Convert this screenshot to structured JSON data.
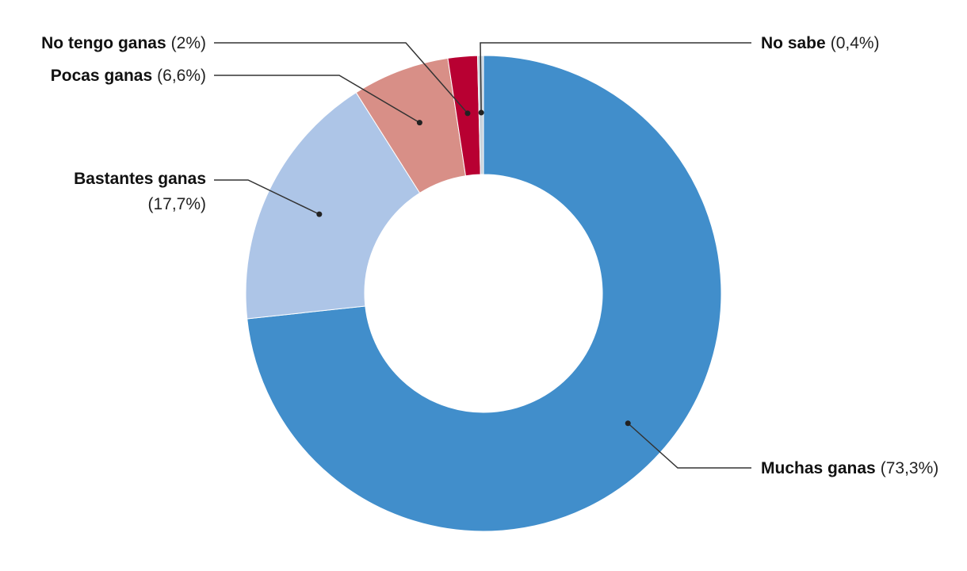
{
  "chart_data": {
    "type": "pie",
    "variant": "donut",
    "title": "",
    "slices": [
      {
        "label": "Muchas ganas",
        "value_text": "(73,3%)",
        "value": 73.3,
        "color": "#418ecb"
      },
      {
        "label": "Bastantes ganas",
        "value_text": "(17,7%)",
        "value": 17.7,
        "color": "#adc5e7"
      },
      {
        "label": "Pocas ganas",
        "value_text": "(6,6%)",
        "value": 6.6,
        "color": "#d88f87"
      },
      {
        "label": "No tengo ganas",
        "value_text": "(2%)",
        "value": 2,
        "color": "#b80032"
      },
      {
        "label": "No sabe",
        "value_text": "(0,4%)",
        "value": 0.4,
        "color": "#c9d3dc"
      }
    ]
  }
}
